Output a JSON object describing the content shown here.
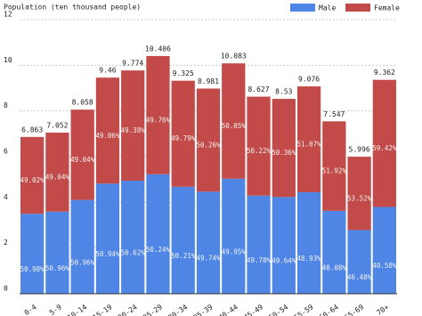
{
  "chart_data": {
    "type": "stacked-bar",
    "title": "Population (ten thousand people)",
    "categories": [
      "0-4",
      "5-9",
      "10-14",
      "15-19",
      "20-24",
      "25-29",
      "30-34",
      "35-39",
      "40-44",
      "45-49",
      "50-54",
      "55-59",
      "60-64",
      "65-69",
      "70+"
    ],
    "series": [
      {
        "name": "Male",
        "color": "#4f86e6",
        "values": [
          3.499,
          3.594,
          4.106,
          4.819,
          4.948,
          5.228,
          4.682,
          4.467,
          5.036,
          4.295,
          4.234,
          4.441,
          3.629,
          2.787,
          3.799
        ],
        "share_labels": [
          "50.98%",
          "50.96%",
          "50.96%",
          "50.94%",
          "50.62%",
          "50.24%",
          "50.21%",
          "49.74%",
          "49.95%",
          "49.78%",
          "49.64%",
          "48.93%",
          "48.08%",
          "46.48%",
          "40.58%"
        ]
      },
      {
        "name": "Female",
        "color": "#c24b49",
        "values": [
          3.364,
          3.458,
          3.952,
          4.641,
          4.826,
          5.178,
          4.643,
          4.514,
          5.047,
          4.332,
          4.296,
          4.635,
          3.918,
          3.209,
          5.563
        ],
        "share_labels": [
          "49.02%",
          "49.04%",
          "49.04%",
          "49.06%",
          "49.38%",
          "49.76%",
          "49.79%",
          "50.26%",
          "50.05%",
          "50.22%",
          "50.36%",
          "51.07%",
          "51.92%",
          "53.52%",
          "59.42%"
        ]
      }
    ],
    "totals": [
      6.863,
      7.052,
      8.058,
      9.46,
      9.774,
      10.406,
      9.325,
      8.981,
      10.083,
      8.627,
      8.53,
      9.076,
      7.547,
      5.996,
      9.362
    ],
    "ylim": [
      0,
      12
    ],
    "yticks": [
      0,
      2,
      4,
      6,
      8,
      10,
      12
    ],
    "grid": true,
    "legend": "top-right"
  }
}
